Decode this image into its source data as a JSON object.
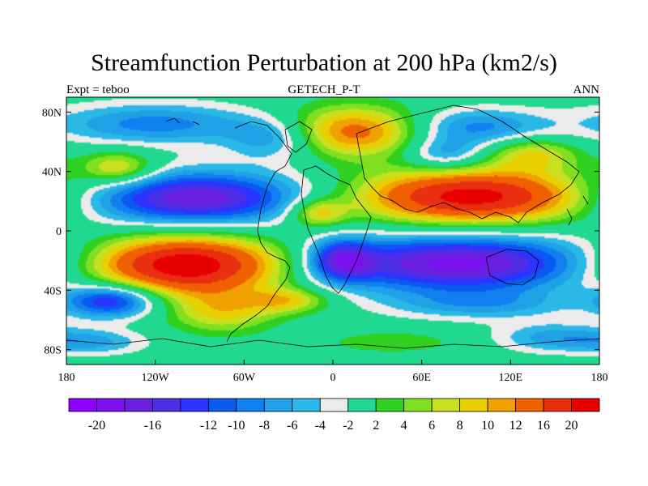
{
  "chart_data": {
    "type": "heatmap",
    "title": "Streamfunction Perturbation at 200 hPa (km2/s)",
    "subtitle_left": "Expt = teboo",
    "subtitle_center": "GETECH_P-T",
    "subtitle_right": "ANN",
    "x_ticks": [
      {
        "value": -180,
        "label": "180"
      },
      {
        "value": -120,
        "label": "120W"
      },
      {
        "value": -60,
        "label": "60W"
      },
      {
        "value": 0,
        "label": "0"
      },
      {
        "value": 60,
        "label": "60E"
      },
      {
        "value": 120,
        "label": "120E"
      },
      {
        "value": 180,
        "label": "180"
      }
    ],
    "y_ticks": [
      {
        "value": 80,
        "label": "80N"
      },
      {
        "value": 40,
        "label": "40N"
      },
      {
        "value": 0,
        "label": "0"
      },
      {
        "value": -40,
        "label": "40S"
      },
      {
        "value": -80,
        "label": "80S"
      }
    ],
    "xlim": [
      -180,
      180
    ],
    "ylim": [
      -90,
      90
    ],
    "colorbar": {
      "levels": [
        -20,
        -18,
        -16,
        -14,
        -12,
        -10,
        -8,
        -6,
        -4,
        -2,
        2,
        4,
        6,
        8,
        10,
        12,
        16,
        20
      ],
      "labels": [
        "-20",
        "-16",
        "-12",
        "-10",
        "-8",
        "-6",
        "-4",
        "-2",
        "2",
        "4",
        "6",
        "8",
        "10",
        "12",
        "16",
        "20"
      ],
      "label_levels": [
        -20,
        -16,
        -12,
        -10,
        -8,
        -6,
        -4,
        -2,
        2,
        4,
        6,
        8,
        10,
        12,
        16,
        20
      ],
      "colors": [
        "#8c00ff",
        "#7a10f0",
        "#6a1ee0",
        "#4b2ee6",
        "#2a33ff",
        "#0a5af0",
        "#1080f0",
        "#20a0e6",
        "#2ab8e6",
        "#ebebeb",
        "#20d890",
        "#30d020",
        "#80e020",
        "#c8e020",
        "#e8d000",
        "#f0a000",
        "#f06000",
        "#e83010",
        "#e80000"
      ]
    },
    "features": [
      {
        "name": "south-pacific-high",
        "lon": -100,
        "lat": -23,
        "amp": 24,
        "rx": 50,
        "ry": 14
      },
      {
        "name": "north-pacific-low",
        "lon": -95,
        "lat": 22,
        "amp": -18,
        "rx": 58,
        "ry": 13
      },
      {
        "name": "asia-high",
        "lon": 95,
        "lat": 23,
        "amp": 22,
        "rx": 58,
        "ry": 13
      },
      {
        "name": "indian-ocean-low",
        "lon": 85,
        "lat": -22,
        "amp": -19,
        "rx": 70,
        "ry": 14
      },
      {
        "name": "europe-high",
        "lon": 15,
        "lat": 67,
        "amp": 14,
        "rx": 35,
        "ry": 12
      },
      {
        "name": "north-pacific-polar-low",
        "lon": -120,
        "lat": 72,
        "amp": -9,
        "rx": 50,
        "ry": 10
      },
      {
        "name": "north-atlantic-low",
        "lon": -40,
        "lat": 62,
        "amp": -8,
        "rx": 22,
        "ry": 10
      },
      {
        "name": "siberia-low",
        "lon": 95,
        "lat": 70,
        "amp": -9,
        "rx": 35,
        "ry": 9
      },
      {
        "name": "central-asia-low",
        "lon": 75,
        "lat": 52,
        "amp": -8,
        "rx": 20,
        "ry": 8
      },
      {
        "name": "north-pacific-high",
        "lon": -145,
        "lat": 42,
        "amp": 10,
        "rx": 18,
        "ry": 8
      },
      {
        "name": "west-pacific-high",
        "lon": 135,
        "lat": 52,
        "amp": 8,
        "rx": 22,
        "ry": 8
      },
      {
        "name": "africa-low",
        "lon": 5,
        "lat": -20,
        "amp": -12,
        "rx": 15,
        "ry": 10
      },
      {
        "name": "atlantic-high",
        "lon": -10,
        "lat": 12,
        "amp": 10,
        "rx": 14,
        "ry": 7
      },
      {
        "name": "south-pacific-low",
        "lon": -150,
        "lat": -47,
        "amp": -15,
        "rx": 22,
        "ry": 8
      },
      {
        "name": "south-america-high",
        "lon": -75,
        "lat": -55,
        "amp": 8,
        "rx": 25,
        "ry": 10
      },
      {
        "name": "south-atlantic-high",
        "lon": -30,
        "lat": -47,
        "amp": 8,
        "rx": 20,
        "ry": 6
      },
      {
        "name": "southern-indian-low",
        "lon": 100,
        "lat": -50,
        "amp": -6,
        "rx": 45,
        "ry": 7
      },
      {
        "name": "antarctic-low-east",
        "lon": 150,
        "lat": -72,
        "amp": -7,
        "rx": 28,
        "ry": 7
      },
      {
        "name": "antarctic-low-west",
        "lon": -160,
        "lat": -75,
        "amp": -6,
        "rx": 25,
        "ry": 6
      },
      {
        "name": "antarctic-high",
        "lon": 40,
        "lat": -75,
        "amp": 4,
        "rx": 30,
        "ry": 5
      }
    ]
  }
}
